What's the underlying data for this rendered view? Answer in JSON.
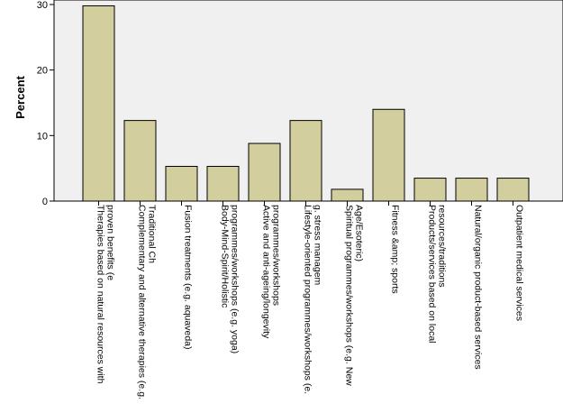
{
  "chart_data": {
    "type": "bar",
    "ylabel": "Percent",
    "xlabel": "",
    "ylim": [
      0,
      30
    ],
    "yticks": [
      0,
      10,
      20,
      30
    ],
    "grid": false,
    "bar_color": "#d3ce9e",
    "plot_bg": "#f0f0f0",
    "categories": [
      [
        "Therapies based on natural resources with",
        "proven benefits (e"
      ],
      [
        "Complementary and alternative therapies (e.g.",
        "Traditional Ch"
      ],
      [
        "Fusion treatments (e.g. aquaveda)"
      ],
      [
        "Body-Mind-Spirit/Holistic",
        "programmes/workshops (e.g. yoga)"
      ],
      [
        "Active and anti-ageing/longevity",
        "programmes/workshops"
      ],
      [
        "Lifestyle-oriented programmes/workshops (e.",
        "g. stress managem"
      ],
      [
        "Spiritual programmes/workshops (e.g. New",
        "Age/Esoteric)"
      ],
      [
        "Fitness &amp; sports"
      ],
      [
        "Products/services based on local",
        "resources/traditions"
      ],
      [
        "Natural/organic product-based services"
      ],
      [
        "Outpatient medical services"
      ]
    ],
    "values": [
      29.8,
      12.3,
      5.3,
      5.3,
      8.8,
      12.3,
      1.8,
      14.0,
      3.5,
      3.5,
      3.5
    ]
  }
}
